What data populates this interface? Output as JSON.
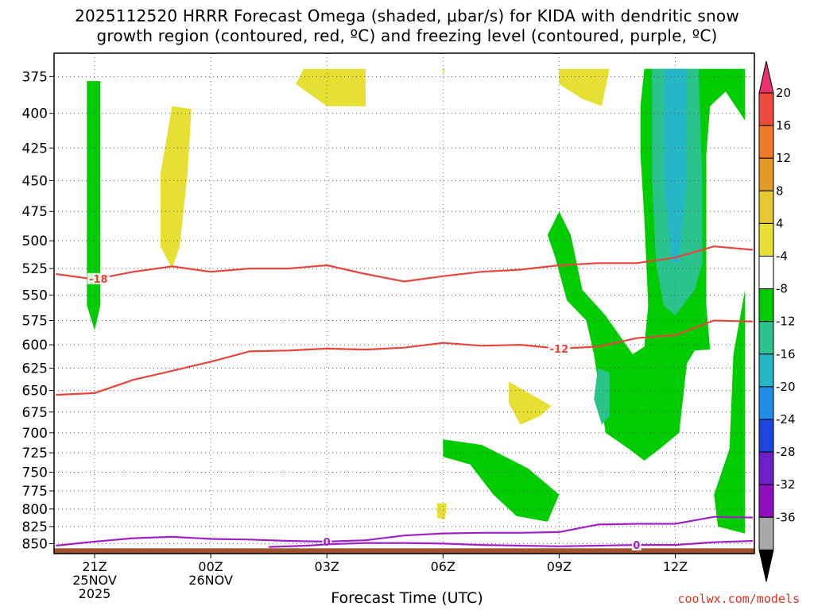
{
  "title_line1": "2025112520 HRRR Forecast Omega (shaded, μbar/s) for KIDA with dendritic snow",
  "title_line2": "growth region (contoured, red, ºC) and freezing level (contoured, purple, ºC)",
  "credit": "coolwx.com/models",
  "chart_data": {
    "type": "heatmap",
    "xlabel": "Forecast Time (UTC)",
    "ylabel": "",
    "x_ticks": [
      {
        "hour": 0,
        "lines": [
          "21Z",
          "25NOV",
          "2025"
        ]
      },
      {
        "hour": 3,
        "lines": [
          "00Z",
          "26NOV"
        ]
      },
      {
        "hour": 6,
        "lines": [
          "03Z"
        ]
      },
      {
        "hour": 9,
        "lines": [
          "06Z"
        ]
      },
      {
        "hour": 12,
        "lines": [
          "09Z"
        ]
      },
      {
        "hour": 15,
        "lines": [
          "12Z"
        ]
      }
    ],
    "xlim": [
      -1,
      17
    ],
    "y_ticks": [
      375,
      400,
      425,
      450,
      475,
      500,
      525,
      550,
      575,
      600,
      625,
      650,
      675,
      700,
      725,
      750,
      775,
      800,
      825,
      850
    ],
    "ylim": [
      865,
      360
    ],
    "y_scale": "log-pressure",
    "grid": true,
    "colorbar": {
      "labels": [
        "20",
        "16",
        "12",
        "8",
        "4",
        "-4",
        "-8",
        "-12",
        "-16",
        "-20",
        "-24",
        "-28",
        "-32",
        "-36"
      ],
      "colors": [
        "#e8336a",
        "#ef4a3e",
        "#ee7a2a",
        "#e39a22",
        "#e6c830",
        "#e8e036",
        "#ffffff",
        "#00cc00",
        "#2bc38c",
        "#26b7c7",
        "#1e8ee8",
        "#1d45e0",
        "#7020c8",
        "#8d10c0",
        "#a8a8a8",
        "#000000"
      ]
    },
    "shaded_regions": [
      {
        "band": "-4 to -8",
        "color": "#00cc00",
        "points": [
          [
            -0.2,
            378
          ],
          [
            0.15,
            378
          ],
          [
            0.15,
            505
          ],
          [
            0.15,
            560
          ],
          [
            0.0,
            585
          ],
          [
            -0.2,
            560
          ],
          [
            -0.2,
            505
          ]
        ]
      },
      {
        "band": "4 to 8",
        "color": "#e6e034",
        "points": [
          [
            2.0,
            395
          ],
          [
            2.5,
            397
          ],
          [
            2.4,
            445
          ],
          [
            2.2,
            505
          ],
          [
            2.0,
            525
          ],
          [
            1.7,
            505
          ],
          [
            1.7,
            445
          ]
        ]
      },
      {
        "band": "4 to 8",
        "color": "#e6e034",
        "points": [
          [
            5.4,
            370
          ],
          [
            7.0,
            370
          ],
          [
            7.0,
            395
          ],
          [
            6.0,
            395
          ],
          [
            5.2,
            380
          ]
        ]
      },
      {
        "band": "4 to 8",
        "color": "#e6e034",
        "points": [
          [
            9.0,
            370
          ],
          [
            9.05,
            370
          ],
          [
            9.0,
            375
          ]
        ]
      },
      {
        "band": "4 to 8",
        "color": "#e6e034",
        "points": [
          [
            12.0,
            370
          ],
          [
            13.3,
            370
          ],
          [
            13.1,
            395
          ],
          [
            12.6,
            390
          ],
          [
            12.0,
            380
          ]
        ]
      },
      {
        "band": "-4 to -8",
        "color": "#00cc00",
        "points": [
          [
            14.2,
            370
          ],
          [
            16.8,
            370
          ],
          [
            16.8,
            405
          ],
          [
            16.3,
            385
          ],
          [
            15.9,
            395
          ],
          [
            15.8,
            430
          ],
          [
            15.8,
            560
          ],
          [
            15.9,
            605
          ],
          [
            15.5,
            606
          ],
          [
            15.3,
            620
          ],
          [
            15.1,
            700
          ],
          [
            14.6,
            720
          ],
          [
            14.2,
            735
          ],
          [
            13.8,
            720
          ],
          [
            13.2,
            700
          ],
          [
            12.9,
            610
          ],
          [
            12.7,
            575
          ],
          [
            12.2,
            555
          ],
          [
            11.9,
            515
          ],
          [
            11.7,
            495
          ],
          [
            12.0,
            475
          ],
          [
            12.3,
            495
          ],
          [
            12.6,
            545
          ],
          [
            13.2,
            570
          ],
          [
            13.9,
            610
          ],
          [
            14.2,
            602
          ],
          [
            14.3,
            560
          ],
          [
            14.2,
            480
          ],
          [
            14.1,
            430
          ],
          [
            14.1,
            395
          ]
        ]
      },
      {
        "band": "-8 to -12",
        "color": "#2bc38c",
        "points": [
          [
            14.4,
            370
          ],
          [
            15.6,
            370
          ],
          [
            15.7,
            450
          ],
          [
            15.7,
            520
          ],
          [
            15.5,
            545
          ],
          [
            15.0,
            570
          ],
          [
            14.7,
            560
          ],
          [
            14.5,
            520
          ],
          [
            14.4,
            450
          ]
        ]
      },
      {
        "band": "-12 to -16",
        "color": "#26b7c7",
        "points": [
          [
            14.7,
            370
          ],
          [
            15.3,
            370
          ],
          [
            15.3,
            450
          ],
          [
            15.1,
            520
          ],
          [
            14.9,
            520
          ],
          [
            14.7,
            450
          ]
        ]
      },
      {
        "band": "-8 to -12",
        "color": "#2bc38c",
        "points": [
          [
            13.0,
            625
          ],
          [
            13.3,
            630
          ],
          [
            13.3,
            680
          ],
          [
            13.1,
            690
          ],
          [
            12.9,
            660
          ]
        ]
      },
      {
        "band": "-4 to -8",
        "color": "#00cc00",
        "points": [
          [
            16.8,
            545
          ],
          [
            16.8,
            835
          ],
          [
            16.1,
            825
          ],
          [
            16.0,
            780
          ],
          [
            16.4,
            720
          ],
          [
            16.5,
            610
          ]
        ]
      },
      {
        "band": "4 to 8",
        "color": "#e6e034",
        "points": [
          [
            10.7,
            640
          ],
          [
            11.5,
            660
          ],
          [
            11.8,
            668
          ],
          [
            11.5,
            680
          ],
          [
            11.0,
            690
          ],
          [
            10.7,
            665
          ]
        ]
      },
      {
        "band": "-4 to -8",
        "color": "#00cc00",
        "points": [
          [
            9.0,
            708
          ],
          [
            10.0,
            715
          ],
          [
            11.2,
            745
          ],
          [
            12.0,
            780
          ],
          [
            11.7,
            818
          ],
          [
            10.9,
            810
          ],
          [
            10.3,
            780
          ],
          [
            9.7,
            740
          ],
          [
            9.0,
            730
          ]
        ]
      },
      {
        "band": "4 to 8",
        "color": "#e6e034",
        "points": [
          [
            8.85,
            792
          ],
          [
            9.1,
            792
          ],
          [
            9.05,
            815
          ],
          [
            8.85,
            812
          ]
        ]
      }
    ],
    "series": [
      {
        "name": "-18",
        "color": "#e8453c",
        "label_at": 0.1,
        "points": [
          [
            -1,
            530
          ],
          [
            0,
            535
          ],
          [
            1,
            528
          ],
          [
            2,
            523
          ],
          [
            3,
            528
          ],
          [
            4,
            525
          ],
          [
            5,
            525
          ],
          [
            6,
            522
          ],
          [
            7,
            530
          ],
          [
            8,
            537
          ],
          [
            9,
            532
          ],
          [
            10,
            528
          ],
          [
            11,
            526
          ],
          [
            12,
            522
          ],
          [
            13,
            520
          ],
          [
            14,
            520
          ],
          [
            15,
            515
          ],
          [
            16,
            505
          ],
          [
            17,
            508
          ]
        ]
      },
      {
        "name": "-12",
        "color": "#e8453c",
        "label_at": 12.0,
        "points": [
          [
            -1,
            655
          ],
          [
            0,
            653
          ],
          [
            1,
            638
          ],
          [
            2,
            628
          ],
          [
            3,
            618
          ],
          [
            4,
            607
          ],
          [
            5,
            606
          ],
          [
            6,
            604
          ],
          [
            7,
            605
          ],
          [
            8,
            603
          ],
          [
            9,
            598
          ],
          [
            10,
            601
          ],
          [
            11,
            600
          ],
          [
            12,
            604
          ],
          [
            13,
            602
          ],
          [
            14,
            593
          ],
          [
            15,
            590
          ],
          [
            16,
            575
          ],
          [
            17,
            576
          ]
        ]
      },
      {
        "name": "0",
        "color": "#a020c8",
        "label_at": 6.0,
        "points": [
          [
            -1,
            853
          ],
          [
            0,
            847
          ],
          [
            1,
            842
          ],
          [
            2,
            840
          ],
          [
            3,
            843
          ],
          [
            4,
            844
          ],
          [
            5,
            846
          ],
          [
            6,
            847
          ],
          [
            7,
            845
          ],
          [
            8,
            838
          ],
          [
            9,
            835
          ],
          [
            10,
            834
          ],
          [
            11,
            834
          ],
          [
            12,
            833
          ],
          [
            13,
            822
          ],
          [
            14,
            821
          ],
          [
            15,
            821
          ],
          [
            16,
            811
          ],
          [
            17,
            812
          ]
        ]
      },
      {
        "name": "0",
        "color": "#a020c8",
        "label_at": 14.0,
        "points": [
          [
            4.5,
            855
          ],
          [
            5.5,
            853
          ],
          [
            6,
            851
          ],
          [
            7,
            849
          ],
          [
            8,
            849
          ],
          [
            9,
            850
          ],
          [
            10,
            852
          ],
          [
            11,
            853
          ],
          [
            12,
            854
          ],
          [
            13,
            853
          ],
          [
            14,
            852
          ],
          [
            15,
            852
          ],
          [
            16,
            848
          ],
          [
            17,
            846
          ]
        ]
      }
    ],
    "surface_pressure": 857,
    "surface_color": "#a0522d"
  }
}
